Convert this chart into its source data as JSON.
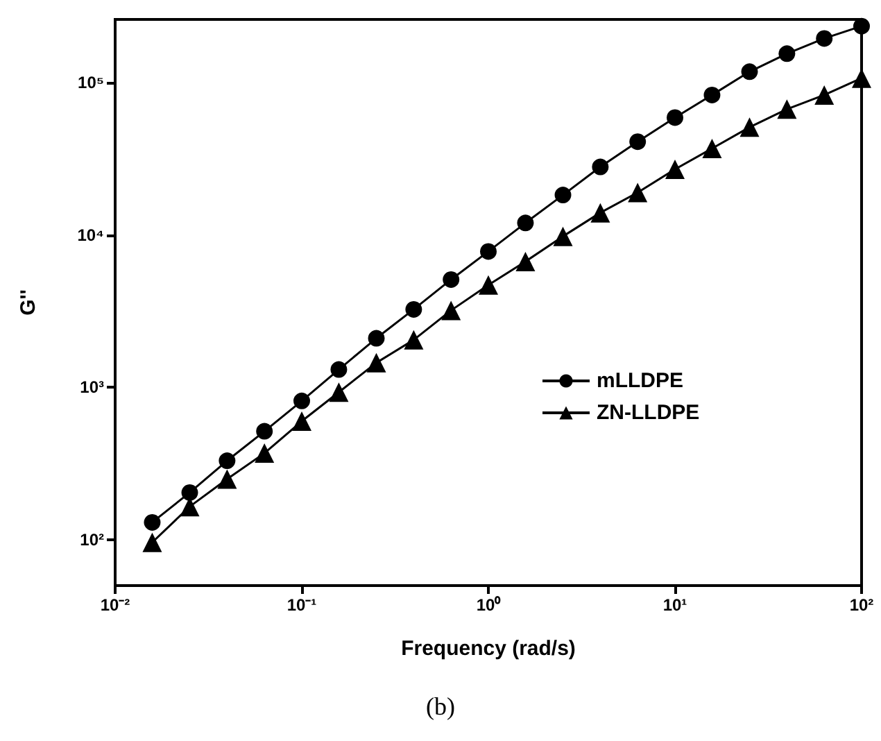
{
  "chart_data": {
    "type": "line",
    "xlabel": "Frequency (rad/s)",
    "ylabel": "G''",
    "annotations": [
      "(b)"
    ],
    "x": [
      0.0158,
      0.0251,
      0.0398,
      0.0631,
      0.1,
      0.158,
      0.251,
      0.398,
      0.631,
      1,
      1.58,
      2.51,
      3.98,
      6.31,
      10,
      15.8,
      25.1,
      39.8,
      63.1,
      100
    ],
    "series": [
      {
        "name": "mLLDPE",
        "color": "#000000",
        "marker": "circle",
        "values": [
          130,
          204,
          330,
          515,
          815,
          1310,
          2100,
          3250,
          5100,
          7800,
          12000,
          18300,
          28000,
          41000,
          59000,
          83000,
          118000,
          155000,
          195000,
          235000
        ]
      },
      {
        "name": "ZN-LLDPE",
        "color": "#000000",
        "marker": "triangle",
        "values": [
          96,
          165,
          250,
          370,
          600,
          930,
          1450,
          2050,
          3200,
          4700,
          6700,
          9800,
          14000,
          19000,
          27000,
          37000,
          51000,
          67000,
          83000,
          107000
        ]
      }
    ],
    "log": "xy",
    "xlim": [
      0.01,
      100
    ],
    "ylim": [
      50,
      260000
    ],
    "xticks": [
      {
        "value": 0.01,
        "label": "10⁻²"
      },
      {
        "value": 0.1,
        "label": "10⁻¹"
      },
      {
        "value": 1,
        "label": "10⁰"
      },
      {
        "value": 10,
        "label": "10¹"
      },
      {
        "value": 100,
        "label": "10²"
      }
    ],
    "yticks": [
      {
        "value": 100,
        "label": "10²"
      },
      {
        "value": 1000,
        "label": "10³"
      },
      {
        "value": 10000,
        "label": "10⁴"
      },
      {
        "value": 100000,
        "label": "10⁵"
      }
    ],
    "grid": false,
    "legend": "right",
    "line_style": "solid"
  }
}
